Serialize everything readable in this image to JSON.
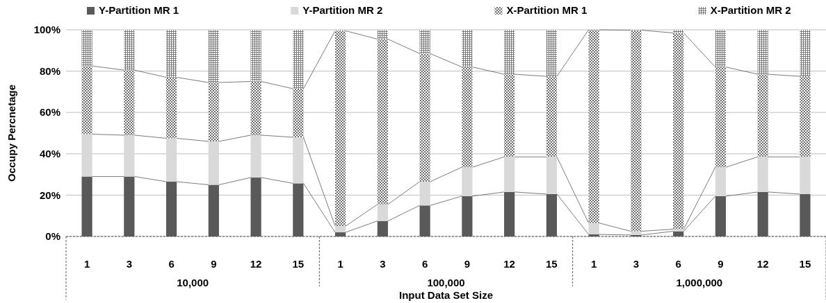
{
  "chart_data": {
    "type": "bar",
    "stacked": true,
    "xlabel": "Input Data Set Size",
    "ylabel": "Occupy Percnetage",
    "categories": [
      "1",
      "3",
      "6",
      "9",
      "12",
      "15",
      "1",
      "3",
      "6",
      "9",
      "12",
      "15",
      "1",
      "3",
      "6",
      "9",
      "12",
      "15"
    ],
    "annotations": [
      "10,000",
      "100,000",
      "1,000,000"
    ],
    "series": [
      {
        "name": "Y-Partition MR 1",
        "color": "#595959",
        "values": [
          29,
          29,
          26.5,
          25,
          28.5,
          25.7,
          2,
          7.5,
          15,
          19.5,
          21.5,
          20.5,
          1,
          0.7,
          2.5,
          19.5,
          21.5,
          20.5
        ]
      },
      {
        "name": "Y-Partition MR 2",
        "color": "#d9d9d9",
        "values": [
          20.5,
          20,
          21,
          21,
          20.5,
          22.3,
          3,
          8,
          11.5,
          14,
          17,
          18,
          5.5,
          1.8,
          1,
          14,
          17,
          18
        ]
      },
      {
        "name": "X-Partition MR 1",
        "color": "#6e6e6e",
        "values": [
          33,
          31.5,
          29.5,
          28.5,
          26,
          23.5,
          94.5,
          80,
          62,
          48.5,
          40,
          39,
          93.5,
          97.3,
          95,
          48.5,
          40,
          39
        ]
      },
      {
        "name": "X-Partition MR 2",
        "color": "#7a7a7a",
        "values": [
          17.5,
          19.5,
          23,
          25.5,
          25,
          28.5,
          0.5,
          4.5,
          11.5,
          18,
          21.5,
          22.5,
          0,
          0.2,
          1.5,
          18,
          21.5,
          22.5
        ]
      }
    ],
    "ylim": [
      0,
      100
    ],
    "yticks": [
      {
        "value": 0,
        "label": "0%"
      },
      {
        "value": 20,
        "label": "20%"
      },
      {
        "value": 40,
        "label": "40%"
      },
      {
        "value": 60,
        "label": "60%"
      },
      {
        "value": 80,
        "label": "80%"
      },
      {
        "value": 100,
        "label": "100%"
      }
    ],
    "grid": "y",
    "legend": "top"
  }
}
